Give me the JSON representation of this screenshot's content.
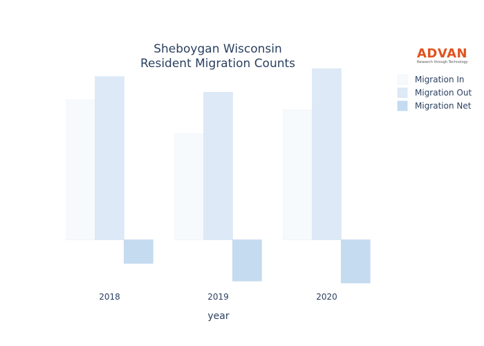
{
  "chart_data": {
    "type": "bar",
    "title_lines": [
      "Sheboygan Wisconsin",
      "Resident Migration Counts"
    ],
    "xlabel": "year",
    "ylabel": "",
    "categories": [
      "2018",
      "2019",
      "2020"
    ],
    "ylim": [
      -1100,
      4250
    ],
    "grid": false,
    "legend_position": "top-right",
    "series": [
      {
        "name": "Migration In",
        "values": [
          3550,
          2700,
          3300
        ],
        "color": "#f7fafd",
        "stroke": "#e8eff8"
      },
      {
        "name": "Migration Out",
        "values": [
          4150,
          3750,
          4350
        ],
        "color": "#dde9f6",
        "stroke": "#d3e2f3"
      },
      {
        "name": "Migration Net",
        "values": [
          -600,
          -1050,
          -1100
        ],
        "color": "#c5dbf0",
        "stroke": "#b9d3ee"
      }
    ]
  },
  "logo": {
    "text": "ADVAN",
    "tagline": "Research through Technology",
    "color": "#e0531f"
  }
}
